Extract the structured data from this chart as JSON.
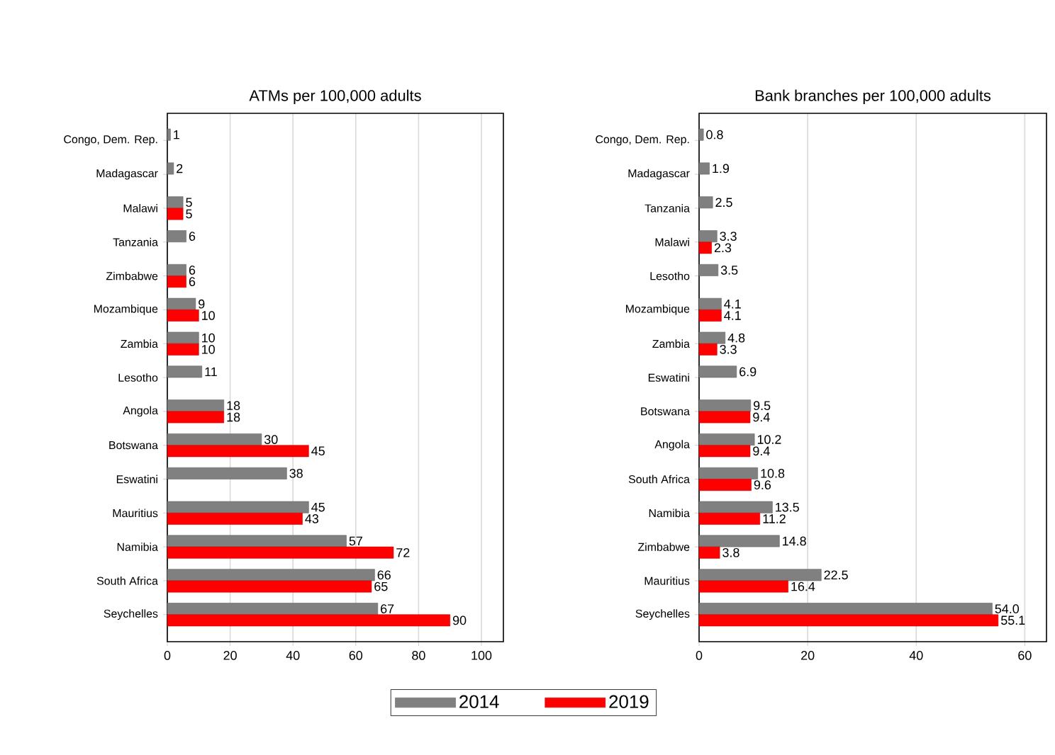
{
  "chart_data": [
    {
      "type": "bar",
      "orientation": "horizontal",
      "title": "ATMs per 100,000 adults",
      "categories": [
        "Congo, Dem. Rep.",
        "Madagascar",
        "Malawi",
        "Tanzania",
        "Zimbabwe",
        "Mozambique",
        "Zambia",
        "Lesotho",
        "Angola",
        "Botswana",
        "Eswatini",
        "Mauritius",
        "Namibia",
        "South Africa",
        "Seychelles"
      ],
      "series": [
        {
          "name": "2014",
          "color": "#808080",
          "values": [
            1,
            2,
            5,
            6,
            6,
            9,
            10,
            11,
            18,
            30,
            38,
            45,
            57,
            66,
            67
          ]
        },
        {
          "name": "2019",
          "color": "#ff0000",
          "values": [
            null,
            null,
            5,
            null,
            6,
            10,
            10,
            null,
            18,
            45,
            null,
            43,
            72,
            65,
            90
          ]
        }
      ],
      "xlim": [
        0,
        107
      ],
      "xticks": [
        0,
        20,
        40,
        60,
        80,
        100
      ],
      "grid": "x",
      "legend": "bottom",
      "data_labels": true
    },
    {
      "type": "bar",
      "orientation": "horizontal",
      "title": "Bank branches per 100,000 adults",
      "categories": [
        "Congo, Dem. Rep.",
        "Madagascar",
        "Tanzania",
        "Malawi",
        "Lesotho",
        "Mozambique",
        "Zambia",
        "Eswatini",
        "Botswana",
        "Angola",
        "South Africa",
        "Namibia",
        "Zimbabwe",
        "Mauritius",
        "Seychelles"
      ],
      "series": [
        {
          "color": "#808080",
          "values": [
            0.8,
            1.9,
            2.5,
            3.3,
            3.5,
            4.1,
            4.8,
            6.9,
            9.5,
            10.2,
            10.8,
            13.5,
            14.8,
            22.5,
            54.0
          ],
          "value_labels": [
            "0.8",
            "1.9",
            "2.5",
            "3.3",
            "3.5",
            "4.1",
            "4.8",
            "6.9",
            "9.5",
            "10.2",
            "10.8",
            "13.5",
            "14.8",
            "22.5",
            "54.0"
          ]
        },
        {
          "color": "#ff0000",
          "values": [
            null,
            null,
            null,
            2.3,
            null,
            4.1,
            3.3,
            null,
            9.4,
            9.4,
            9.6,
            11.2,
            3.8,
            16.4,
            55.1
          ],
          "value_labels": [
            null,
            null,
            null,
            "2.3",
            null,
            "4.1",
            "3.3",
            null,
            "9.4",
            "9.4",
            "9.6",
            "11.2",
            "3.8",
            "16.4",
            "55.1"
          ]
        }
      ],
      "xlim": [
        0,
        64
      ],
      "xticks": [
        0,
        20,
        40,
        60
      ],
      "grid": "x"
    }
  ]
}
